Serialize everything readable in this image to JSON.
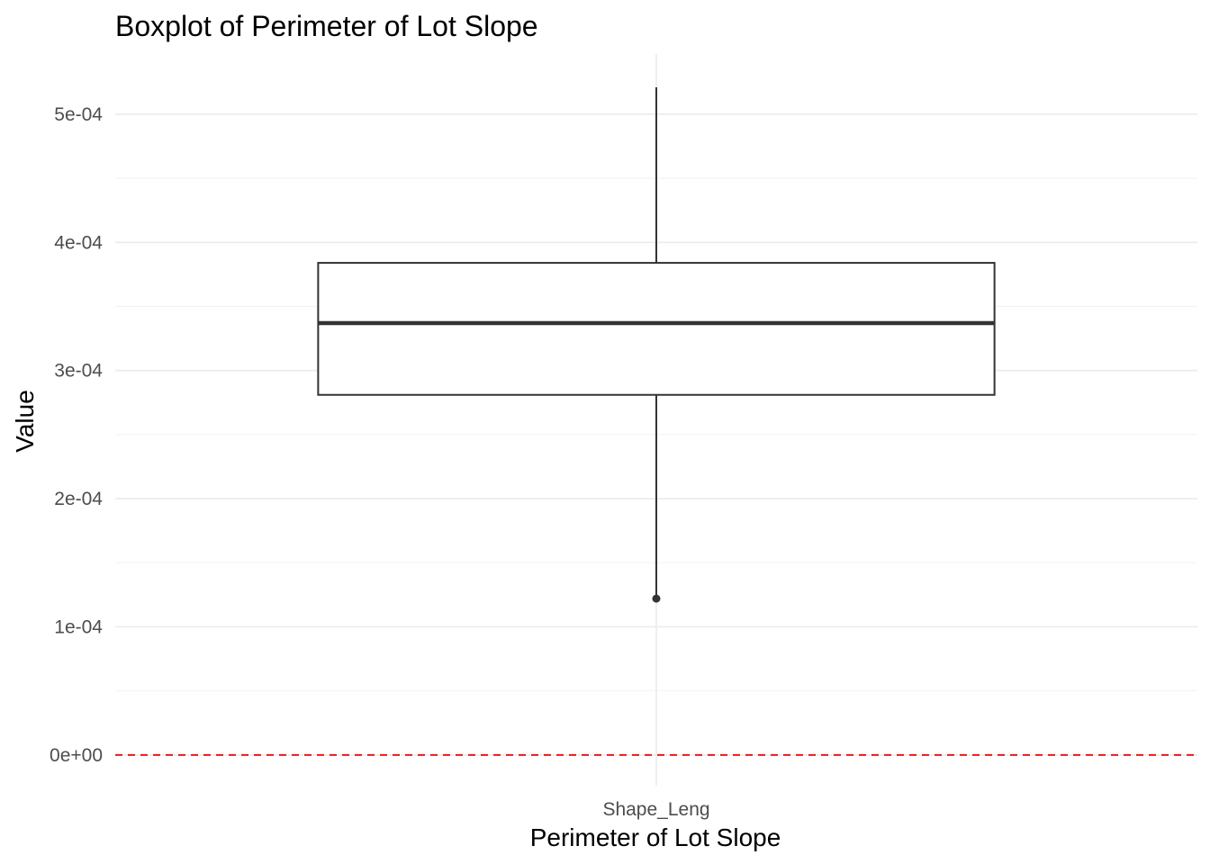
{
  "chart_data": {
    "type": "boxplot",
    "title": "Boxplot of Perimeter of Lot Slope",
    "xlabel": "Perimeter of Lot Slope",
    "ylabel": "Value",
    "categories": [
      "Shape_Leng"
    ],
    "y_ticks": [
      0,
      0.0001,
      0.0002,
      0.0003,
      0.0004,
      0.0005
    ],
    "y_tick_labels": [
      "0e+00",
      "1e-04",
      "2e-04",
      "3e-04",
      "4e-04",
      "5e-04"
    ],
    "ylim": [
      -2.4e-05,
      0.000547
    ],
    "grid": true,
    "boxes": [
      {
        "category": "Shape_Leng",
        "whisker_low": 0.000122,
        "q1": 0.000281,
        "median": 0.000337,
        "q3": 0.000384,
        "whisker_high": 0.000521,
        "outliers": [
          0.000122
        ]
      }
    ],
    "reference_line": {
      "y": 0,
      "style": "dashed",
      "color": "#e8191c"
    }
  }
}
